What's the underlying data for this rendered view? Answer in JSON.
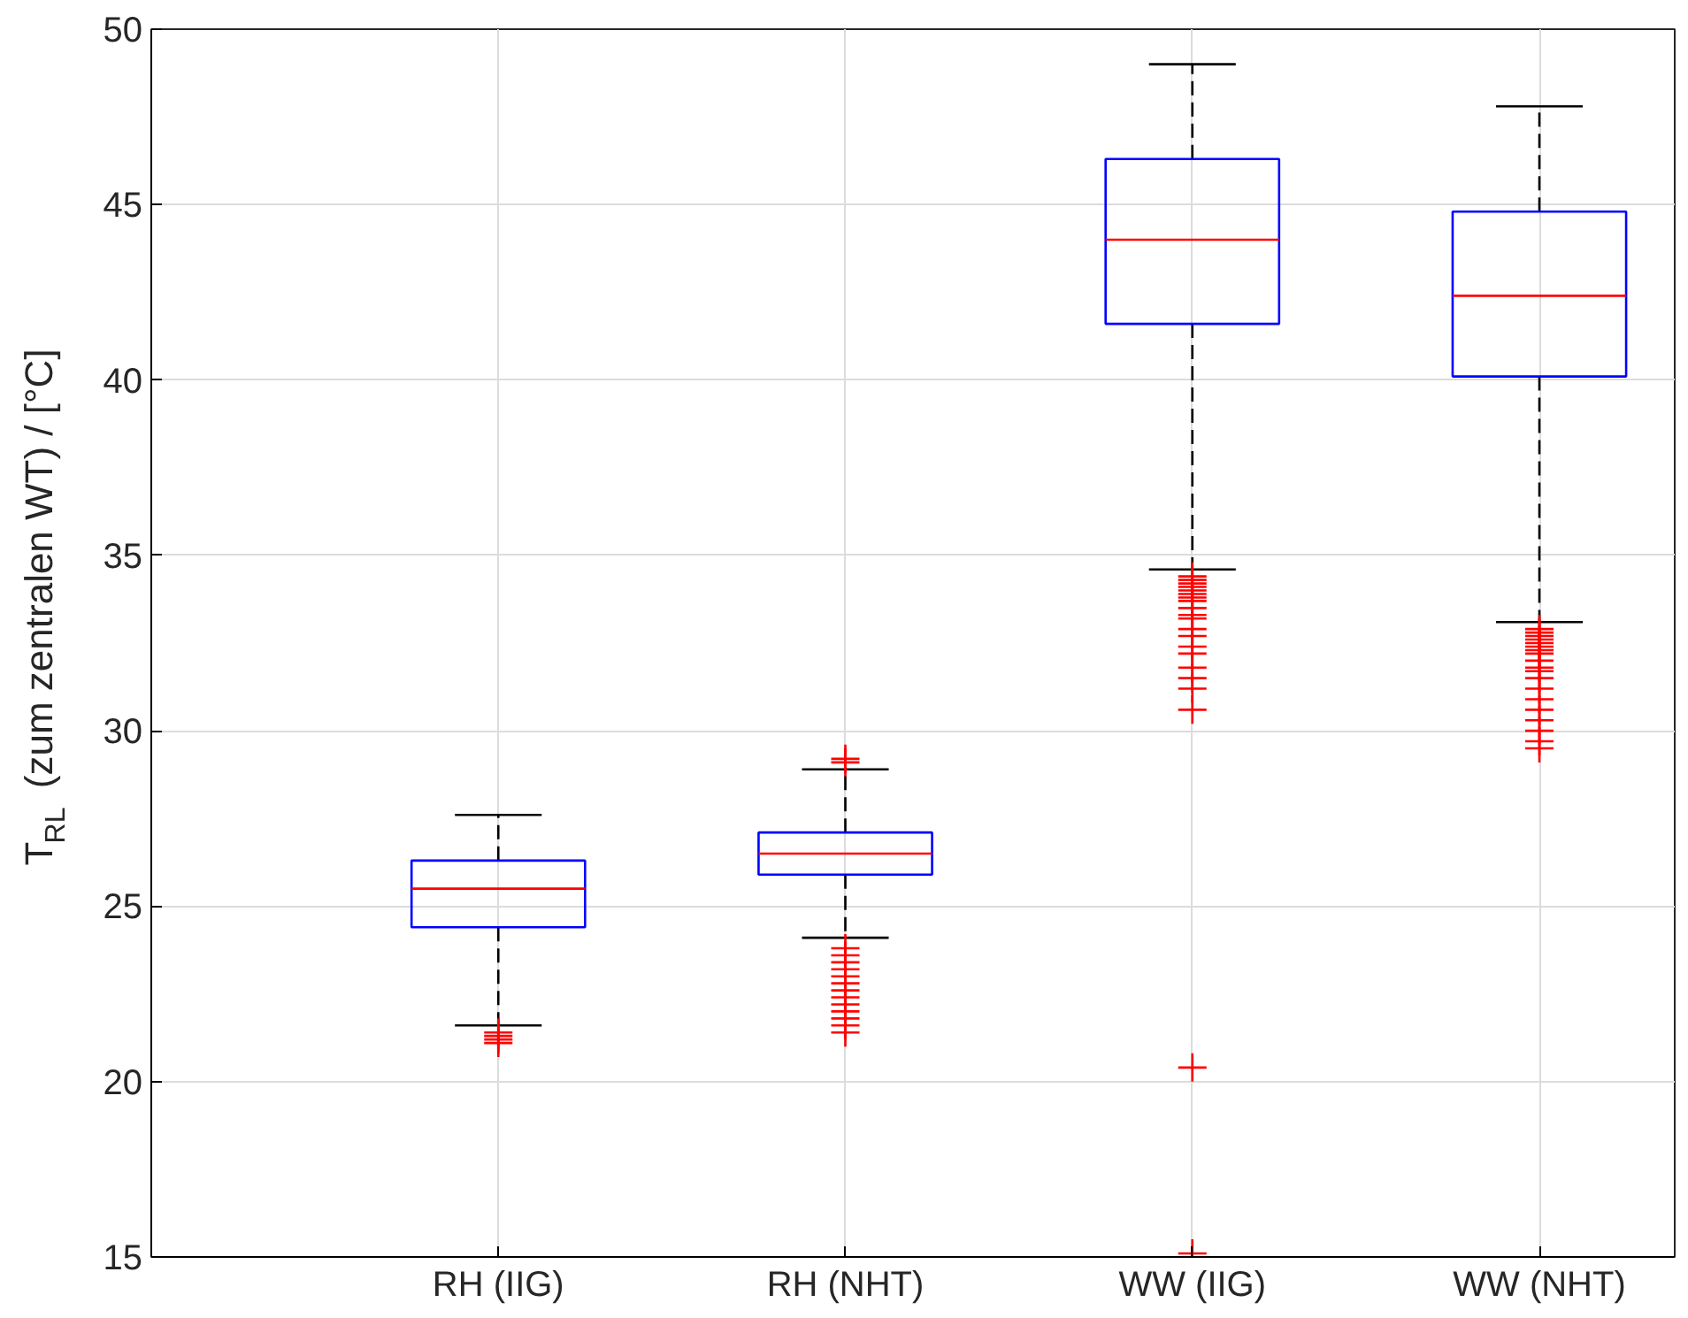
{
  "chart_data": {
    "type": "box",
    "ylabel": "T$_{RL}$ (zum zentralen WT) / [°C]",
    "categories": [
      "RH (IIG)",
      "RH (NHT)",
      "WW (IIG)",
      "WW (NHT)"
    ],
    "boxes": [
      {
        "low": 21.6,
        "q1": 24.4,
        "median": 25.5,
        "q3": 26.3,
        "high": 27.6,
        "outliers": [
          21.4,
          21.3,
          21.2,
          21.1
        ]
      },
      {
        "low": 24.1,
        "q1": 25.9,
        "median": 26.5,
        "q3": 27.1,
        "high": 28.9,
        "outliers": [
          29.1,
          29.2,
          23.8,
          23.6,
          23.4,
          23.2,
          23.0,
          22.8,
          22.6,
          22.4,
          22.2,
          22.0,
          21.8,
          21.6,
          21.4
        ]
      },
      {
        "low": 34.6,
        "q1": 41.6,
        "median": 44.0,
        "q3": 46.3,
        "high": 49.0,
        "outliers": [
          34.4,
          34.3,
          34.2,
          34.1,
          34.0,
          33.9,
          33.8,
          33.7,
          33.5,
          33.3,
          33.2,
          32.9,
          32.7,
          32.4,
          32.2,
          31.8,
          31.5,
          31.2,
          30.6,
          20.4,
          15.1
        ]
      },
      {
        "low": 33.1,
        "q1": 40.1,
        "median": 42.4,
        "q3": 44.8,
        "high": 47.8,
        "outliers": [
          32.9,
          32.8,
          32.7,
          32.6,
          32.5,
          32.4,
          32.3,
          32.2,
          32.0,
          31.8,
          31.7,
          31.5,
          31.2,
          30.9,
          30.6,
          30.3,
          30.0,
          29.7,
          29.5
        ]
      }
    ],
    "ylim": [
      15,
      50
    ],
    "yticks": [
      15,
      20,
      25,
      30,
      35,
      40,
      45,
      50
    ],
    "grid": true,
    "marker": "cross"
  }
}
